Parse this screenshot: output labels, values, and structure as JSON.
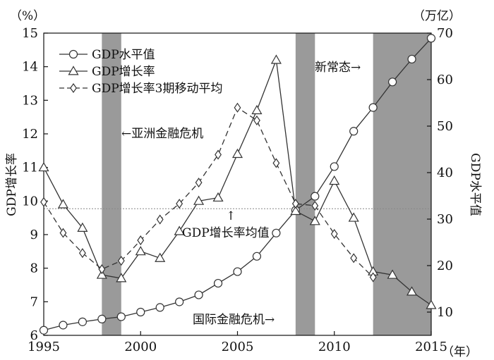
{
  "chart_data": {
    "type": "line",
    "x": [
      1995,
      1996,
      1997,
      1998,
      1999,
      2000,
      2001,
      2002,
      2003,
      2004,
      2005,
      2006,
      2007,
      2008,
      2009,
      2010,
      2011,
      2012,
      2013,
      2014,
      2015
    ],
    "series": [
      {
        "name": "GDP水平值",
        "axis": "right",
        "marker": "circle",
        "dash": "solid",
        "values": [
          6.1,
          7.2,
          7.9,
          8.5,
          9.0,
          10.0,
          11.0,
          12.2,
          13.7,
          16.2,
          18.7,
          22.0,
          27.0,
          31.9,
          34.9,
          41.3,
          48.9,
          54.0,
          59.5,
          64.4,
          68.9
        ]
      },
      {
        "name": "GDP增长率",
        "axis": "left",
        "marker": "triangle",
        "dash": "solid",
        "values": [
          11.0,
          9.9,
          9.2,
          7.8,
          7.7,
          8.5,
          8.3,
          9.1,
          10.0,
          10.1,
          11.4,
          12.7,
          14.2,
          9.7,
          9.4,
          10.6,
          9.5,
          7.9,
          7.8,
          7.3,
          6.9
        ]
      },
      {
        "name": "GDP增长率3期移动平均",
        "axis": "left",
        "marker": "diamond",
        "dash": "dashed",
        "x": [
          1995,
          1996,
          1997,
          1998,
          1999,
          2000,
          2001,
          2002,
          2003,
          2004,
          2005,
          2006,
          2007,
          2008,
          2009,
          2010,
          2011,
          2012
        ],
        "values": [
          9.97,
          9.05,
          8.45,
          7.97,
          8.22,
          8.83,
          9.45,
          9.92,
          10.55,
          11.38,
          12.78,
          12.4,
          11.13,
          9.92,
          9.86,
          9.02,
          8.3,
          7.73
        ]
      }
    ],
    "xlim": [
      1995,
      2015
    ],
    "ylim_left": [
      6,
      15
    ],
    "ylim_right": [
      5,
      70
    ],
    "x_ticks": [
      "1995",
      "2000",
      "2005",
      "2010",
      "2015"
    ],
    "y_left_ticks": [
      "6",
      "7",
      "8",
      "9",
      "10",
      "11",
      "12",
      "13",
      "14",
      "15"
    ],
    "y_right_ticks": [
      "10",
      "20",
      "30",
      "40",
      "50",
      "60",
      "70"
    ],
    "ylabel_left": "GDP增长率",
    "ylabel_right": "GDP水平值",
    "unit_left": "（%）",
    "unit_right": "（万亿）",
    "unit_x": "（年）",
    "mean_line_value": 9.77,
    "shaded_periods": [
      [
        1998,
        1999
      ],
      [
        2008,
        2009
      ],
      [
        2012,
        2015
      ]
    ],
    "annotations": {
      "asia": "←亚洲金融危机",
      "mean": "GDP增长率均值",
      "mean_arrow": "↑",
      "intl": "国际金融危机→",
      "new_normal": "新常态→"
    },
    "legend_position": "top-left",
    "grid": false
  }
}
